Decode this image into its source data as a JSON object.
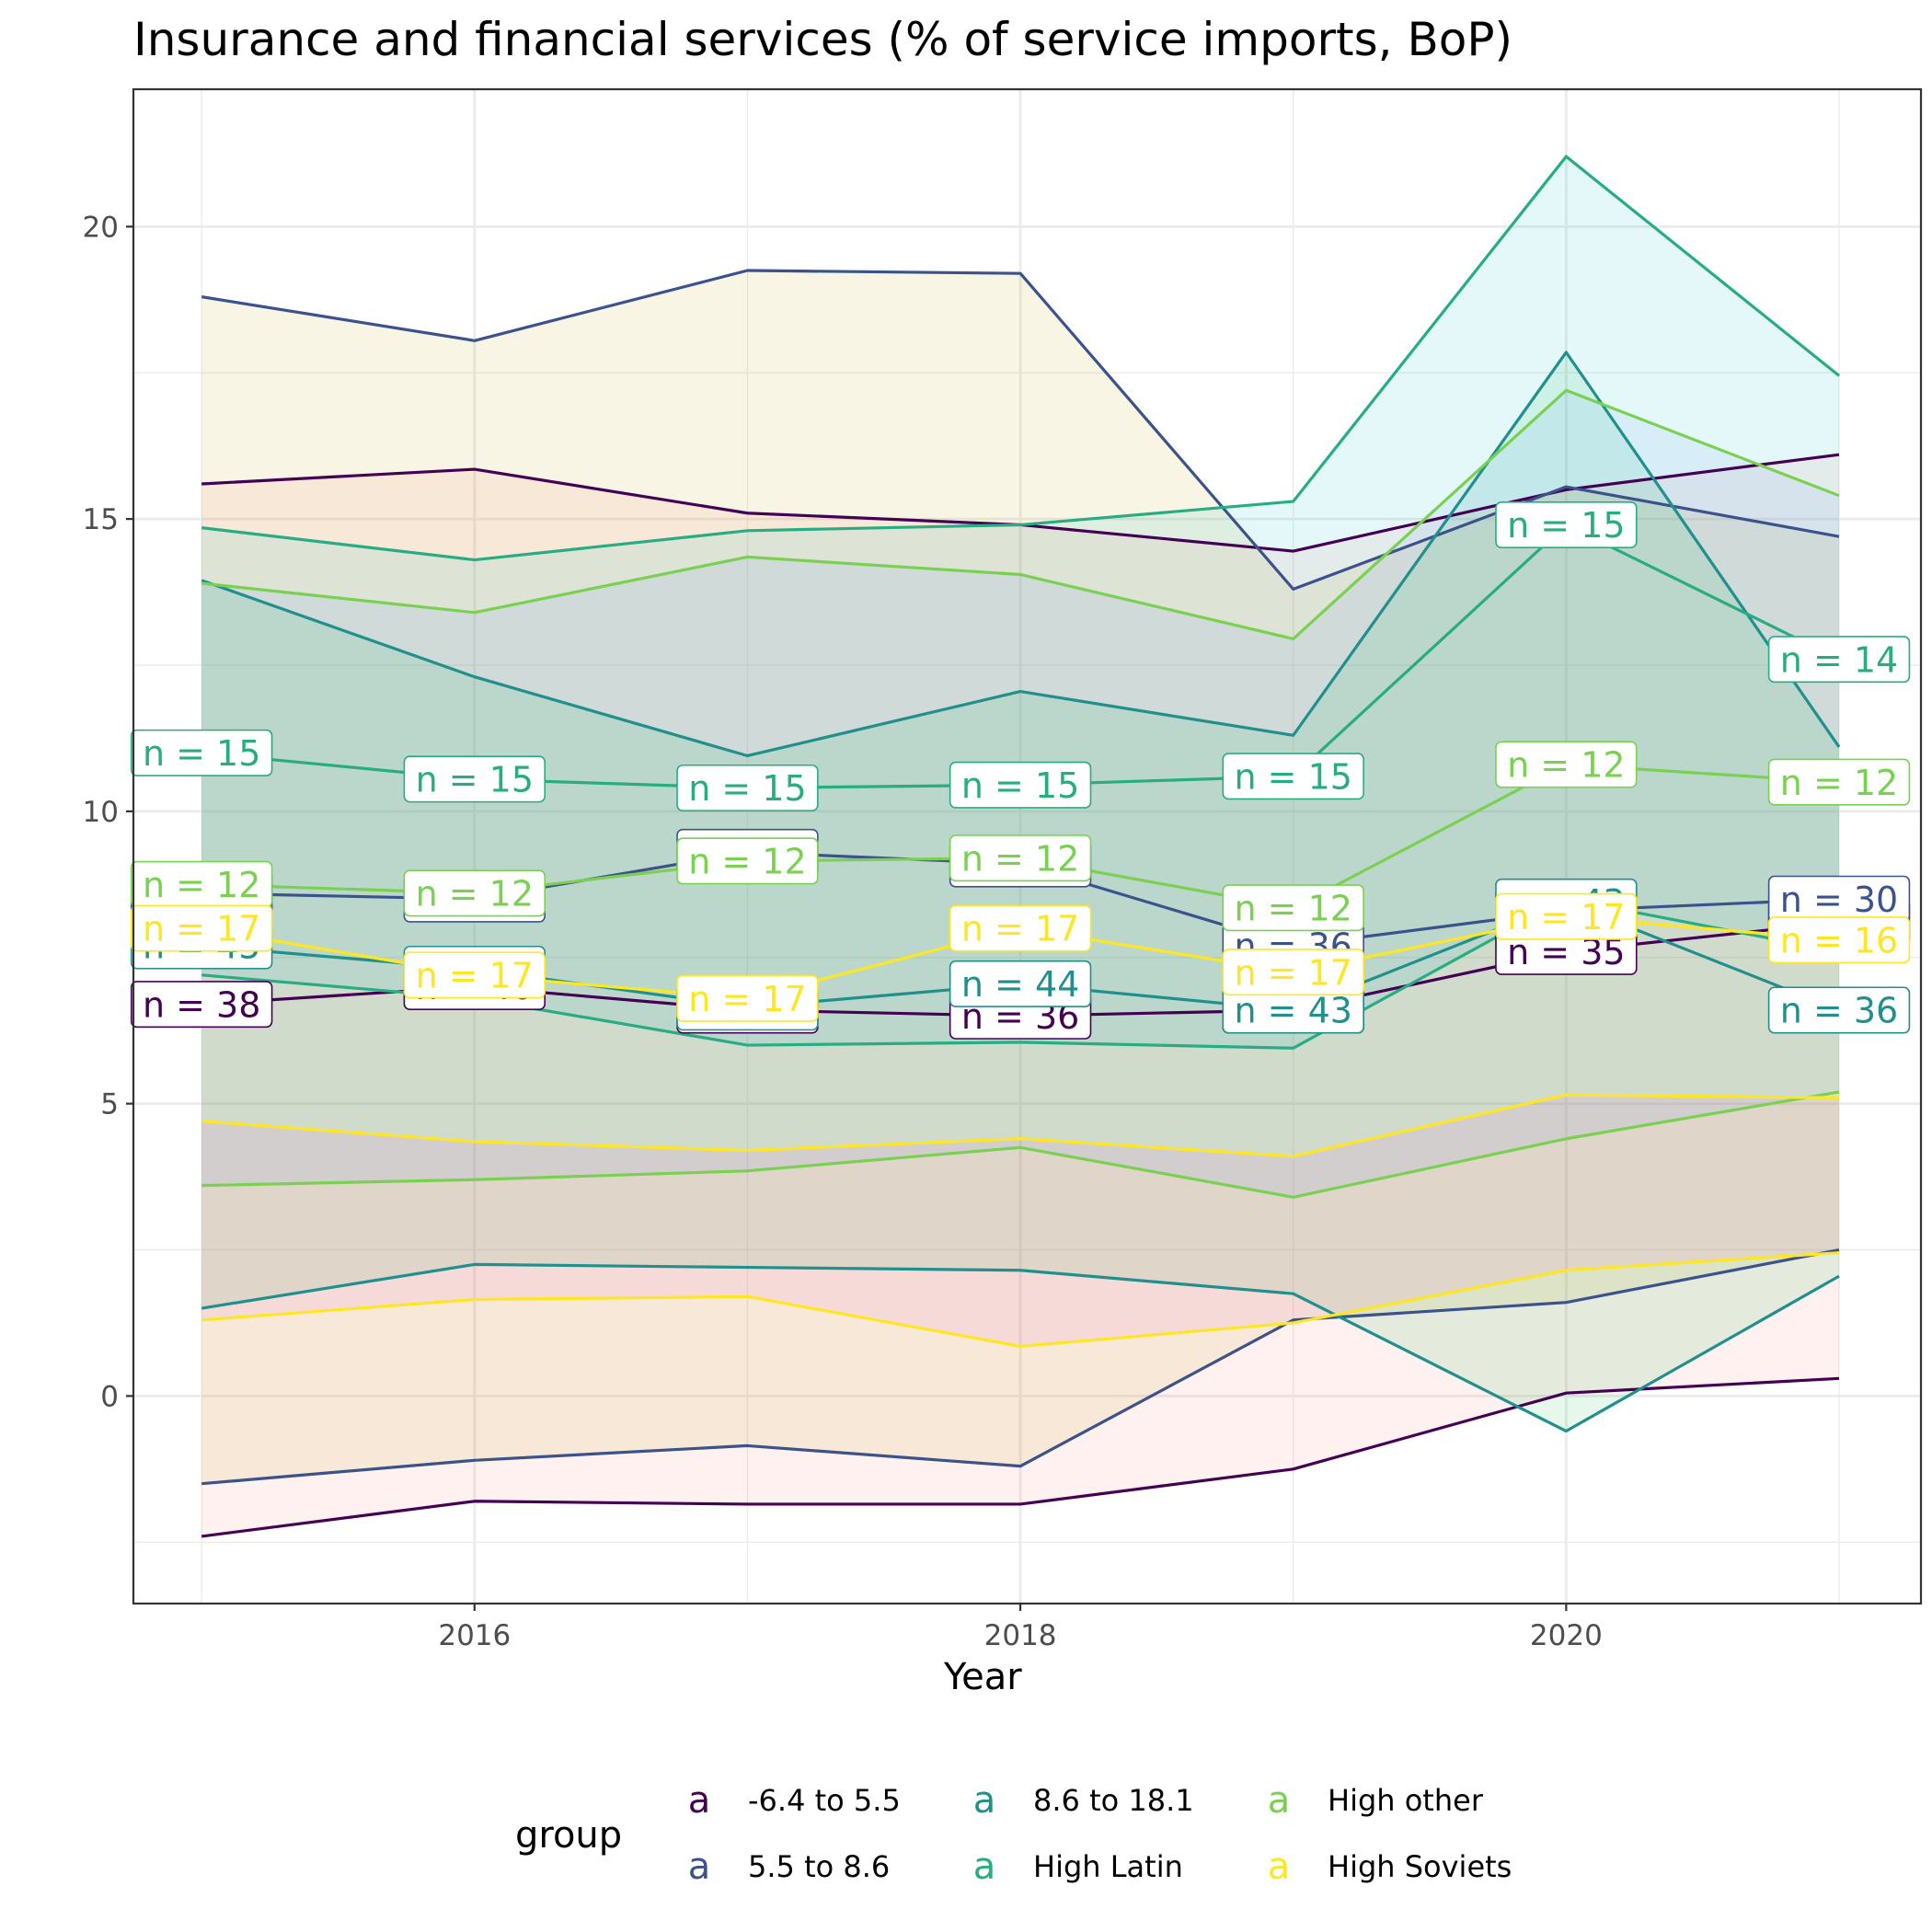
{
  "chart_data": {
    "type": "area",
    "title": "Insurance and financial services (% of service imports, BoP)",
    "xlabel": "Year",
    "ylabel": "",
    "xlim": [
      2014.75,
      2021.3
    ],
    "ylim": [
      -3.55,
      22.35
    ],
    "x_ticks": [
      2016,
      2018,
      2020
    ],
    "y_ticks": [
      0,
      5,
      10,
      15,
      20
    ],
    "grid": true,
    "legend_title": "group",
    "legend_position": "bottom",
    "x": [
      2015,
      2016,
      2017,
      2018,
      2019,
      2020,
      2021
    ],
    "series": [
      {
        "name": "-6.4 to 5.5",
        "color": "#440154",
        "fill": "#F8766D",
        "mean": [
          6.7,
          7.0,
          6.6,
          6.5,
          6.6,
          7.6,
          8.1
        ],
        "upper": [
          15.6,
          15.85,
          15.1,
          14.9,
          14.45,
          15.5,
          16.1
        ],
        "lower": [
          -2.4,
          -1.8,
          -1.85,
          -1.85,
          -1.25,
          0.05,
          0.3
        ],
        "n": [
          38,
          40,
          44,
          36,
          40,
          35,
          32
        ]
      },
      {
        "name": "5.5 to 8.6",
        "color": "#3B528B",
        "fill": "#B79F00",
        "mean": [
          8.6,
          8.5,
          9.3,
          9.1,
          7.7,
          8.3,
          8.5
        ],
        "upper": [
          18.8,
          18.05,
          19.25,
          19.2,
          13.8,
          15.55,
          14.7
        ],
        "lower": [
          -1.5,
          -1.1,
          -0.85,
          -1.2,
          1.3,
          1.6,
          2.5
        ],
        "n": [
          33,
          35,
          34,
          34,
          36,
          33,
          30
        ]
      },
      {
        "name": "8.6 to 18.1",
        "color": "#21908C",
        "fill": "#00BA38",
        "mean": [
          7.7,
          7.3,
          6.65,
          7.05,
          6.6,
          8.45,
          6.6
        ],
        "upper": [
          13.95,
          12.3,
          10.95,
          12.05,
          11.3,
          17.85,
          11.1
        ],
        "lower": [
          1.5,
          2.25,
          2.2,
          2.15,
          1.75,
          -0.6,
          2.05
        ],
        "n": [
          45,
          45,
          44,
          44,
          43,
          43,
          36
        ]
      },
      {
        "name": "High Latin",
        "color": "#27AD81",
        "fill": "#00BFC4",
        "mean": [
          11.0,
          10.55,
          10.4,
          10.45,
          10.6,
          14.9,
          12.6
        ],
        "upper": [
          14.85,
          14.3,
          14.8,
          14.9,
          15.3,
          21.2,
          17.45
        ],
        "lower": [
          7.2,
          6.8,
          6.0,
          6.05,
          5.95,
          8.5,
          7.6
        ],
        "n": [
          15,
          15,
          15,
          15,
          15,
          15,
          14
        ]
      },
      {
        "name": "High other",
        "color": "#7AD151",
        "fill": "#619CFF",
        "mean": [
          8.75,
          8.6,
          9.15,
          9.2,
          8.35,
          10.8,
          10.5
        ],
        "upper": [
          13.9,
          13.4,
          14.35,
          14.05,
          12.95,
          17.2,
          15.4
        ],
        "lower": [
          3.6,
          3.7,
          3.85,
          4.25,
          3.4,
          4.4,
          5.2
        ],
        "n": [
          12,
          12,
          12,
          12,
          12,
          12,
          12
        ]
      },
      {
        "name": "High Soviets",
        "color": "#FDE725",
        "fill": "#F564E3",
        "mean": [
          8.0,
          7.2,
          6.8,
          8.0,
          7.25,
          8.2,
          7.8
        ],
        "upper": [
          4.7,
          4.35,
          4.2,
          4.4,
          4.1,
          5.15,
          5.1
        ],
        "lower": [
          1.3,
          1.65,
          1.7,
          0.85,
          1.25,
          2.15,
          2.45
        ],
        "n": [
          17,
          17,
          17,
          17,
          17,
          17,
          16
        ]
      }
    ]
  }
}
